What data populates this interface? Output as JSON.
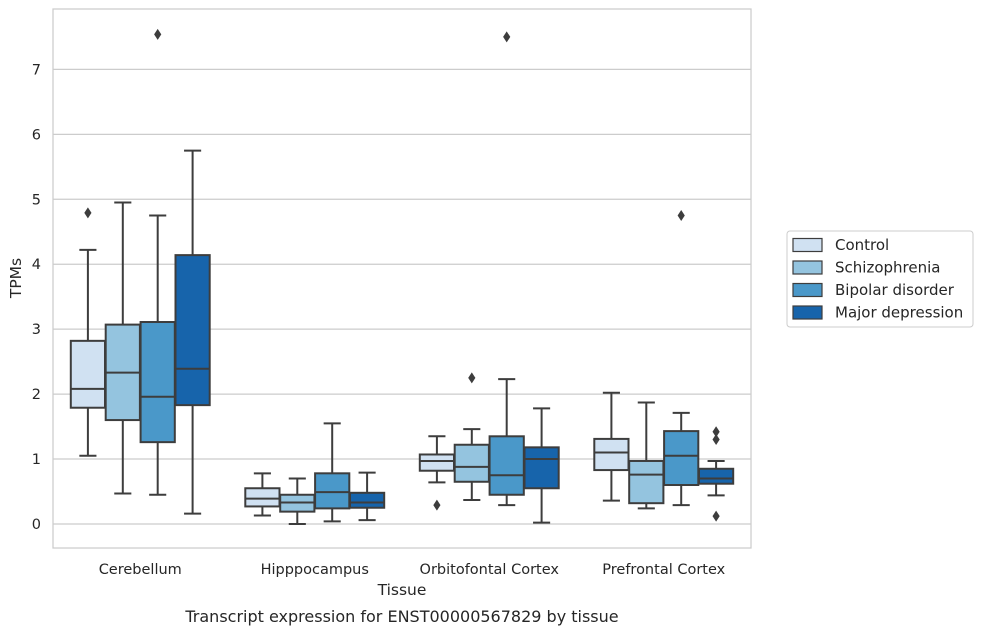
{
  "chart_data": {
    "type": "box",
    "title": "",
    "caption": "Transcript expression for ENST00000567829 by tissue",
    "xlabel": "Tissue",
    "ylabel": "TPMs",
    "ylim": [
      -0.37,
      7.93
    ],
    "yticks": [
      "0",
      "1",
      "2",
      "3",
      "4",
      "5",
      "6",
      "7"
    ],
    "grid": "horizontal",
    "legend_position": "right",
    "categories": [
      "Cerebellum",
      "Hipppocampus",
      "Orbitofontal Cortex",
      "Prefrontal Cortex"
    ],
    "series": [
      {
        "name": "Control",
        "color": "#d0e1f2",
        "boxes": [
          {
            "min": 1.05,
            "q1": 1.79,
            "median": 2.08,
            "q3": 2.82,
            "max": 4.22,
            "outliers": [
              4.79
            ]
          },
          {
            "min": 0.13,
            "q1": 0.27,
            "median": 0.39,
            "q3": 0.55,
            "max": 0.78,
            "outliers": []
          },
          {
            "min": 0.64,
            "q1": 0.82,
            "median": 0.97,
            "q3": 1.07,
            "max": 1.35,
            "outliers": [
              0.29
            ]
          },
          {
            "min": 0.36,
            "q1": 0.83,
            "median": 1.1,
            "q3": 1.31,
            "max": 2.02,
            "outliers": []
          }
        ]
      },
      {
        "name": "Schizophrenia",
        "color": "#94c4df",
        "boxes": [
          {
            "min": 0.47,
            "q1": 1.6,
            "median": 2.33,
            "q3": 3.07,
            "max": 4.95,
            "outliers": []
          },
          {
            "min": 0.0,
            "q1": 0.19,
            "median": 0.33,
            "q3": 0.45,
            "max": 0.7,
            "outliers": []
          },
          {
            "min": 0.37,
            "q1": 0.65,
            "median": 0.88,
            "q3": 1.22,
            "max": 1.46,
            "outliers": [
              2.25
            ]
          },
          {
            "min": 0.24,
            "q1": 0.32,
            "median": 0.76,
            "q3": 0.97,
            "max": 1.87,
            "outliers": []
          }
        ]
      },
      {
        "name": "Bipolar disorder",
        "color": "#4a98c9",
        "boxes": [
          {
            "min": 0.45,
            "q1": 1.26,
            "median": 1.96,
            "q3": 3.11,
            "max": 4.75,
            "outliers": [
              7.54
            ]
          },
          {
            "min": 0.04,
            "q1": 0.24,
            "median": 0.49,
            "q3": 0.78,
            "max": 1.55,
            "outliers": []
          },
          {
            "min": 0.29,
            "q1": 0.45,
            "median": 0.75,
            "q3": 1.35,
            "max": 2.23,
            "outliers": [
              7.5
            ]
          },
          {
            "min": 0.29,
            "q1": 0.6,
            "median": 1.05,
            "q3": 1.43,
            "max": 1.71,
            "outliers": [
              4.75
            ]
          }
        ]
      },
      {
        "name": "Major depression",
        "color": "#1764ab",
        "boxes": [
          {
            "min": 0.16,
            "q1": 1.83,
            "median": 2.39,
            "q3": 4.14,
            "max": 5.75,
            "outliers": []
          },
          {
            "min": 0.06,
            "q1": 0.25,
            "median": 0.33,
            "q3": 0.48,
            "max": 0.79,
            "outliers": []
          },
          {
            "min": 0.02,
            "q1": 0.55,
            "median": 1.0,
            "q3": 1.18,
            "max": 1.78,
            "outliers": []
          },
          {
            "min": 0.44,
            "q1": 0.62,
            "median": 0.7,
            "q3": 0.85,
            "max": 0.97,
            "outliers": [
              1.42,
              1.3,
              0.12
            ]
          }
        ]
      }
    ]
  }
}
